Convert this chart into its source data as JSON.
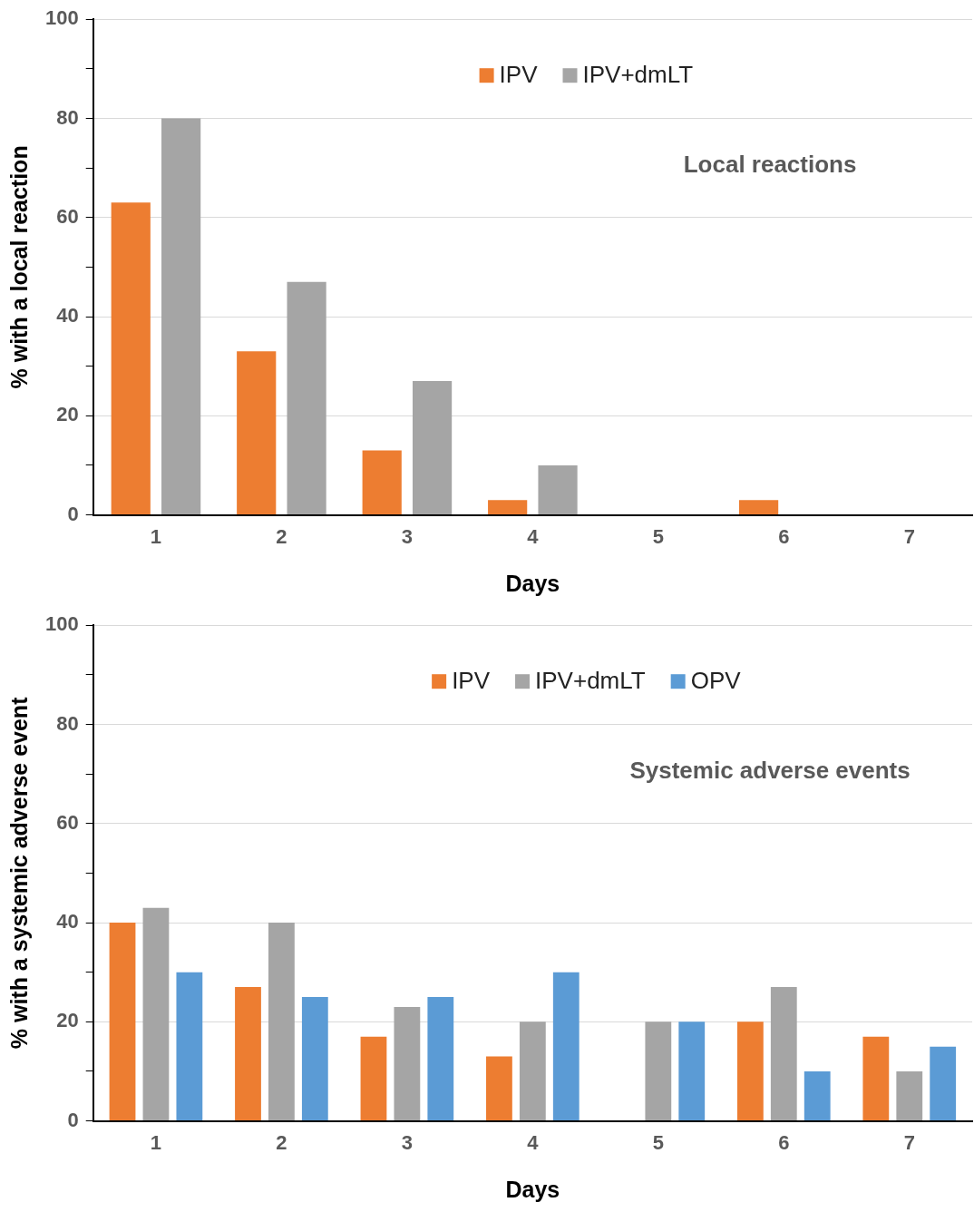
{
  "chart_data": [
    {
      "type": "bar",
      "xlabel": "Days",
      "ylabel": "% with a local reaction",
      "categories": [
        "1",
        "2",
        "3",
        "4",
        "5",
        "6",
        "7"
      ],
      "series": [
        {
          "name": "IPV",
          "color": "#ed7d31",
          "values": [
            63,
            33,
            13,
            3,
            0,
            3,
            0
          ]
        },
        {
          "name": "IPV+dmLT",
          "color": "#a5a5a5",
          "values": [
            80,
            47,
            27,
            10,
            0,
            0,
            0
          ]
        }
      ],
      "ylim": [
        0,
        100
      ],
      "yticks": [
        0,
        {
          "value": 10,
          "label": null
        },
        20,
        {
          "value": 30,
          "label": null
        },
        40,
        {
          "value": 50,
          "label": null
        },
        60,
        {
          "value": 70,
          "label": null
        },
        80,
        {
          "value": 90,
          "label": null
        },
        100
      ],
      "grid": "y",
      "legend": "top",
      "annotations": [
        "Local reactions"
      ]
    },
    {
      "type": "bar",
      "xlabel": "Days",
      "ylabel": "% with a systemic adverse event",
      "categories": [
        "1",
        "2",
        "3",
        "4",
        "5",
        "6",
        "7"
      ],
      "series": [
        {
          "name": "IPV",
          "color": "#ed7d31",
          "values": [
            40,
            27,
            17,
            13,
            0,
            20,
            17
          ]
        },
        {
          "name": "IPV+dmLT",
          "color": "#a5a5a5",
          "values": [
            43,
            40,
            23,
            20,
            20,
            27,
            10
          ]
        },
        {
          "name": "OPV",
          "color": "#5b9bd5",
          "values": [
            30,
            25,
            25,
            30,
            20,
            10,
            15
          ]
        }
      ],
      "ylim": [
        0,
        100
      ],
      "yticks": [
        0,
        {
          "value": 10,
          "label": null
        },
        20,
        {
          "value": 30,
          "label": null
        },
        40,
        {
          "value": 50,
          "label": null
        },
        60,
        {
          "value": 70,
          "label": null
        },
        80,
        {
          "value": 90,
          "label": null
        },
        100
      ],
      "grid": "y",
      "legend": "top",
      "annotations": [
        "Systemic adverse events"
      ]
    }
  ]
}
